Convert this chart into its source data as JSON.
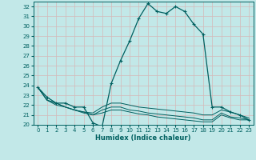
{
  "xlabel": "Humidex (Indice chaleur)",
  "bg_color": "#c2e8e8",
  "grid_color": "#b0d8d8",
  "line_color": "#006060",
  "xlim": [
    -0.5,
    23.5
  ],
  "ylim": [
    20,
    32.5
  ],
  "xticks": [
    0,
    1,
    2,
    3,
    4,
    5,
    6,
    7,
    8,
    9,
    10,
    11,
    12,
    13,
    14,
    15,
    16,
    17,
    18,
    19,
    20,
    21,
    22,
    23
  ],
  "yticks": [
    20,
    21,
    22,
    23,
    24,
    25,
    26,
    27,
    28,
    29,
    30,
    31,
    32
  ],
  "series": [
    {
      "x": [
        0,
        1,
        2,
        3,
        4,
        5,
        6,
        7,
        8,
        9,
        10,
        11,
        12,
        13,
        14,
        15,
        16,
        17,
        18,
        19,
        20,
        21,
        22,
        23
      ],
      "y": [
        23.8,
        22.8,
        22.2,
        22.2,
        21.8,
        21.8,
        20.2,
        19.8,
        24.2,
        26.5,
        28.5,
        30.8,
        32.3,
        31.5,
        31.3,
        32.0,
        31.5,
        30.2,
        29.2,
        21.8,
        21.8,
        21.3,
        21.0,
        20.5
      ],
      "marker": true
    },
    {
      "x": [
        0,
        1,
        2,
        3,
        4,
        5,
        6,
        7,
        8,
        9,
        10,
        11,
        12,
        13,
        14,
        15,
        16,
        17,
        18,
        19,
        20,
        21,
        22,
        23
      ],
      "y": [
        23.8,
        22.5,
        22.2,
        21.8,
        21.5,
        21.3,
        21.2,
        21.8,
        22.2,
        22.2,
        22.0,
        21.8,
        21.7,
        21.6,
        21.5,
        21.4,
        21.3,
        21.2,
        21.0,
        21.0,
        21.5,
        21.3,
        21.0,
        20.7
      ],
      "marker": false
    },
    {
      "x": [
        0,
        1,
        2,
        3,
        4,
        5,
        6,
        7,
        8,
        9,
        10,
        11,
        12,
        13,
        14,
        15,
        16,
        17,
        18,
        19,
        20,
        21,
        22,
        23
      ],
      "y": [
        23.8,
        22.5,
        22.2,
        21.8,
        21.5,
        21.3,
        21.0,
        21.5,
        21.8,
        21.8,
        21.5,
        21.4,
        21.2,
        21.1,
        21.0,
        20.9,
        20.8,
        20.7,
        20.5,
        20.5,
        21.2,
        20.8,
        20.7,
        20.5
      ],
      "marker": false
    },
    {
      "x": [
        0,
        1,
        2,
        3,
        4,
        5,
        6,
        7,
        8,
        9,
        10,
        11,
        12,
        13,
        14,
        15,
        16,
        17,
        18,
        19,
        20,
        21,
        22,
        23
      ],
      "y": [
        23.8,
        22.5,
        22.0,
        21.8,
        21.5,
        21.2,
        21.0,
        21.2,
        21.5,
        21.5,
        21.3,
        21.1,
        21.0,
        20.8,
        20.7,
        20.6,
        20.5,
        20.4,
        20.3,
        20.3,
        21.0,
        20.7,
        20.5,
        20.5
      ],
      "marker": false
    }
  ]
}
